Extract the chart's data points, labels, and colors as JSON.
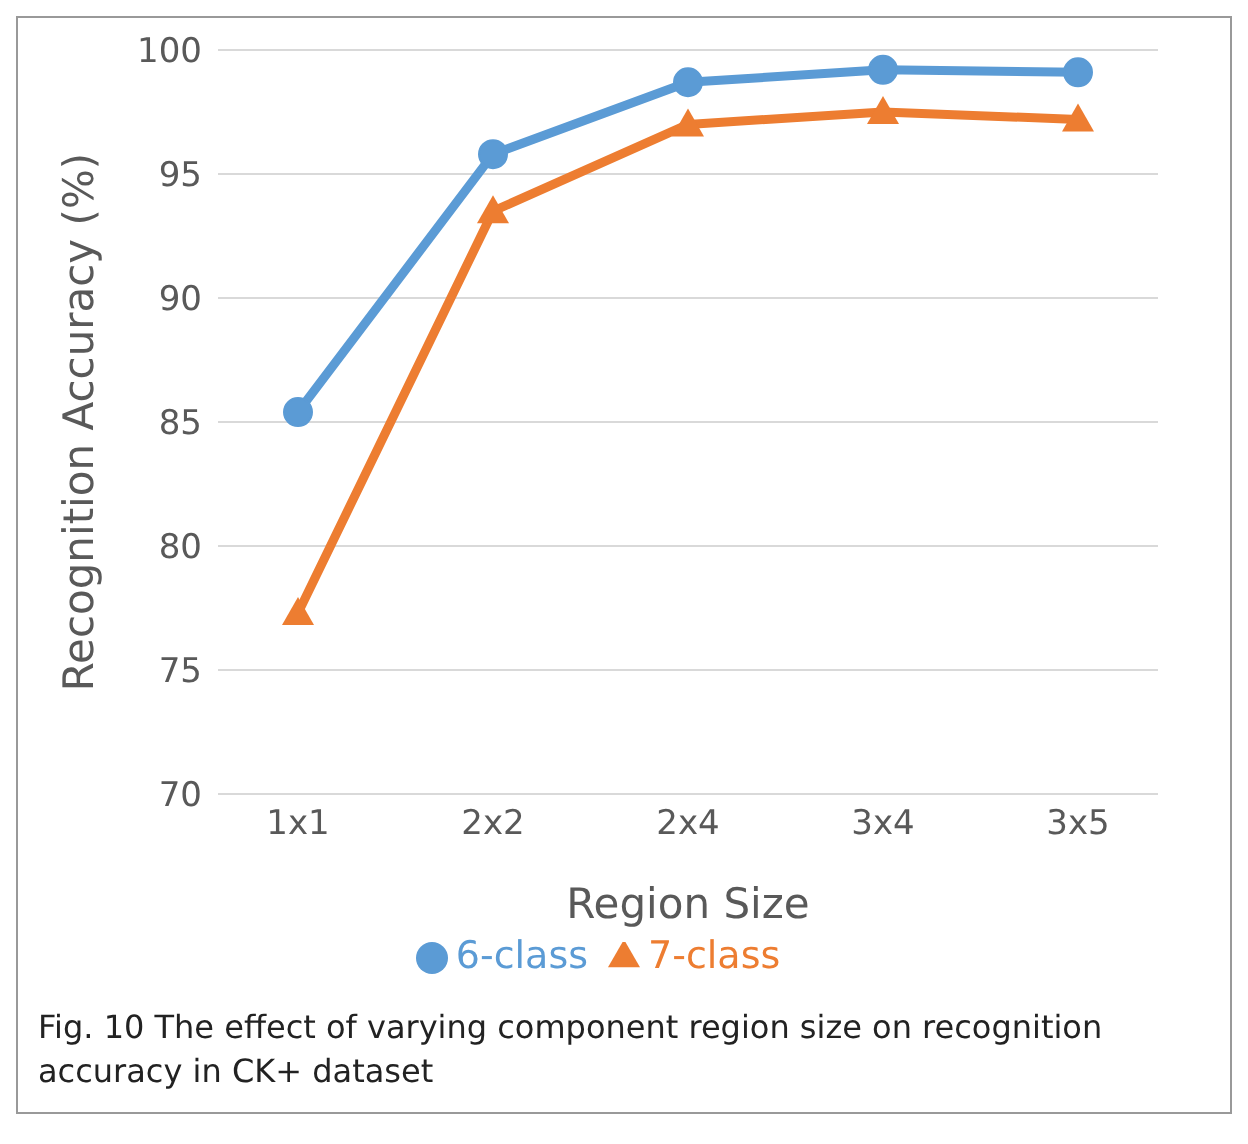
{
  "chart_data": {
    "type": "line",
    "xlabel": "Region Size",
    "ylabel": "Recognition Accuracy (%)",
    "categories": [
      "1x1",
      "2x2",
      "2x4",
      "3x4",
      "3x5"
    ],
    "series": [
      {
        "name": "6-class",
        "color": "#5b9bd5",
        "marker": "circle",
        "values": [
          85.4,
          95.8,
          98.7,
          99.2,
          99.1
        ]
      },
      {
        "name": "7-class",
        "color": "#ed7d31",
        "marker": "triangle",
        "values": [
          77.3,
          93.5,
          97.0,
          97.5,
          97.2
        ]
      }
    ],
    "ylim": [
      70,
      100
    ],
    "yticks": [
      70,
      75,
      80,
      85,
      90,
      95,
      100
    ],
    "grid": "y",
    "legend": "bottom",
    "annotations": [
      "Fig. 10 The effect of varying component region size on recognition accuracy in CK+ dataset"
    ]
  }
}
